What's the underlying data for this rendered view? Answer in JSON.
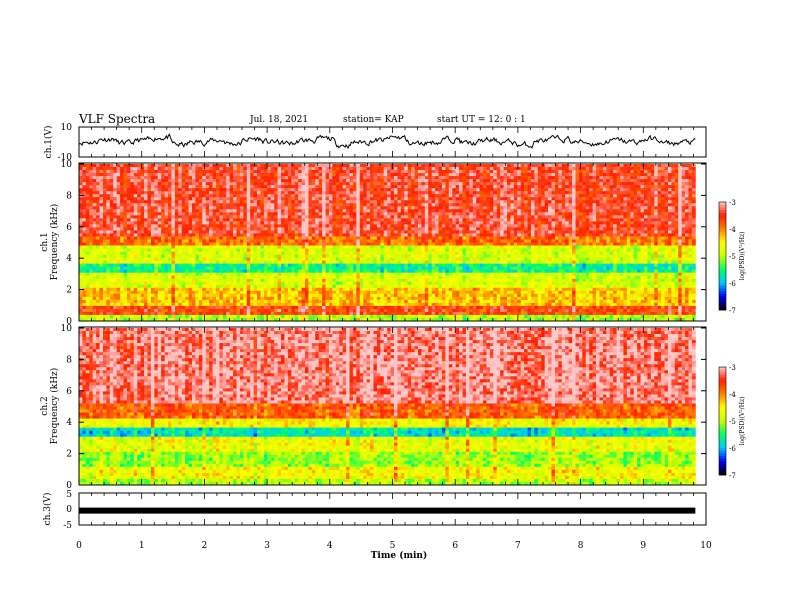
{
  "header": {
    "title": "VLF Spectra",
    "date": "Jul. 18, 2021",
    "station": "station= KAP",
    "start": "start  UT  =   12: 0  : 1"
  },
  "colors": {
    "colormap": [
      "#000000",
      "#0000ff",
      "#00c8ff",
      "#00ff64",
      "#c8ff00",
      "#ffff00",
      "#ff8000",
      "#ff2000",
      "#ffc8c8"
    ],
    "trace": "#000000"
  },
  "chart_data": [
    {
      "type": "line",
      "name": "ch1-waveform",
      "ylabel": "ch.1(V)",
      "ylim": [
        -10,
        10
      ],
      "y_ticks": [
        "10",
        "-10"
      ],
      "x_range_min": [
        0,
        9.83
      ],
      "approx_samples": [
        0,
        2,
        -1,
        1,
        3,
        -2,
        0,
        1,
        -1,
        2,
        0,
        -1,
        1,
        2,
        -2,
        0,
        1,
        3,
        -1,
        0,
        2,
        -1,
        1,
        0,
        -2,
        1,
        2,
        0,
        -1,
        1,
        0,
        2,
        -1,
        0,
        1
      ]
    },
    {
      "type": "heatmap",
      "name": "ch1-spectrogram",
      "ylabel": "ch.1\nFrequency (kHz)",
      "ylim": [
        0,
        10
      ],
      "y_ticks": [
        "0",
        "2",
        "4",
        "6",
        "8",
        "10"
      ],
      "x_range_min": [
        0,
        9.83
      ],
      "colorbar": {
        "label": "log(PSD)(V²/Hz)",
        "range": [
          -7,
          -3
        ],
        "ticks": [
          "-3",
          "-4",
          "-5",
          "-6",
          "-7"
        ]
      },
      "band_levels": [
        {
          "f": [
            0,
            0.4
          ],
          "level": -5.0
        },
        {
          "f": [
            0.4,
            1.0
          ],
          "level": -3.6
        },
        {
          "f": [
            1.0,
            2.2
          ],
          "level": -4.3
        },
        {
          "f": [
            2.2,
            3.0
          ],
          "level": -4.8
        },
        {
          "f": [
            3.0,
            3.6
          ],
          "level": -5.6
        },
        {
          "f": [
            3.6,
            4.8
          ],
          "level": -4.8
        },
        {
          "f": [
            4.8,
            5.4
          ],
          "level": -3.9
        },
        {
          "f": [
            5.4,
            10.0
          ],
          "level": -3.4
        }
      ]
    },
    {
      "type": "heatmap",
      "name": "ch2-spectrogram",
      "ylabel": "ch.2\nFrequency (kHz)",
      "ylim": [
        0,
        10
      ],
      "y_ticks": [
        "0",
        "2",
        "4",
        "6",
        "8",
        "10"
      ],
      "x_range_min": [
        0,
        9.83
      ],
      "colorbar": {
        "label": "log(PSD)(V²/Hz)",
        "range": [
          -7,
          -3
        ],
        "ticks": [
          "-3",
          "-4",
          "-5",
          "-6",
          "-7"
        ]
      },
      "band_levels": [
        {
          "f": [
            0,
            0.4
          ],
          "level": -5.0
        },
        {
          "f": [
            0.4,
            1.2
          ],
          "level": -4.6
        },
        {
          "f": [
            1.2,
            2.2
          ],
          "level": -5.1
        },
        {
          "f": [
            2.2,
            3.0
          ],
          "level": -4.7
        },
        {
          "f": [
            3.0,
            3.6
          ],
          "level": -5.8
        },
        {
          "f": [
            3.6,
            4.2
          ],
          "level": -4.6
        },
        {
          "f": [
            4.2,
            5.2
          ],
          "level": -3.8
        },
        {
          "f": [
            5.2,
            10.0
          ],
          "level": -3.2
        }
      ]
    },
    {
      "type": "line",
      "name": "ch3-waveform",
      "ylabel": "ch.3(V)",
      "ylim": [
        -5,
        5
      ],
      "y_ticks": [
        "5",
        "0",
        "-5"
      ],
      "x_range_min": [
        0,
        9.83
      ],
      "level": -0.5
    }
  ],
  "x_axis": {
    "label": "Time (min)",
    "range": [
      0,
      10
    ],
    "ticks": [
      "0",
      "1",
      "2",
      "3",
      "4",
      "5",
      "6",
      "7",
      "8",
      "9",
      "10"
    ]
  }
}
